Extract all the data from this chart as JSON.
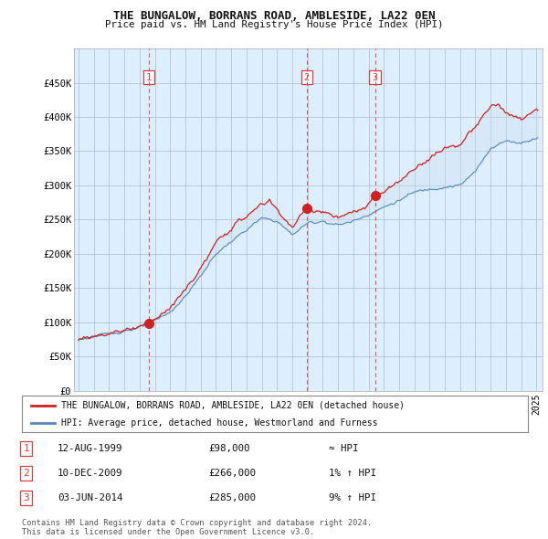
{
  "title": "THE BUNGALOW, BORRANS ROAD, AMBLESIDE, LA22 0EN",
  "subtitle": "Price paid vs. HM Land Registry's House Price Index (HPI)",
  "ylim": [
    0,
    500000
  ],
  "yticks": [
    0,
    50000,
    100000,
    150000,
    200000,
    250000,
    300000,
    350000,
    400000,
    450000
  ],
  "ytick_labels": [
    "£0",
    "£50K",
    "£100K",
    "£150K",
    "£200K",
    "£250K",
    "£300K",
    "£350K",
    "£400K",
    "£450K"
  ],
  "hpi_color": "#5588bb",
  "price_color": "#cc2222",
  "vline_color": "#cc4444",
  "fill_color": "#ccdff0",
  "plot_bg_color": "#ddeeff",
  "purchases": [
    {
      "date_num": 1999.62,
      "price": 98000,
      "label": "1"
    },
    {
      "date_num": 2009.95,
      "price": 266000,
      "label": "2"
    },
    {
      "date_num": 2014.42,
      "price": 285000,
      "label": "3"
    }
  ],
  "legend_entries": [
    "THE BUNGALOW, BORRANS ROAD, AMBLESIDE, LA22 0EN (detached house)",
    "HPI: Average price, detached house, Westmorland and Furness"
  ],
  "table_rows": [
    [
      "1",
      "12-AUG-1999",
      "£98,000",
      "≈ HPI"
    ],
    [
      "2",
      "10-DEC-2009",
      "£266,000",
      "1% ↑ HPI"
    ],
    [
      "3",
      "03-JUN-2014",
      "£285,000",
      "9% ↑ HPI"
    ]
  ],
  "footnote": "Contains HM Land Registry data © Crown copyright and database right 2024.\nThis data is licensed under the Open Government Licence v3.0.",
  "background_color": "#ffffff",
  "xlim_start": 1994.7,
  "xlim_end": 2025.4
}
